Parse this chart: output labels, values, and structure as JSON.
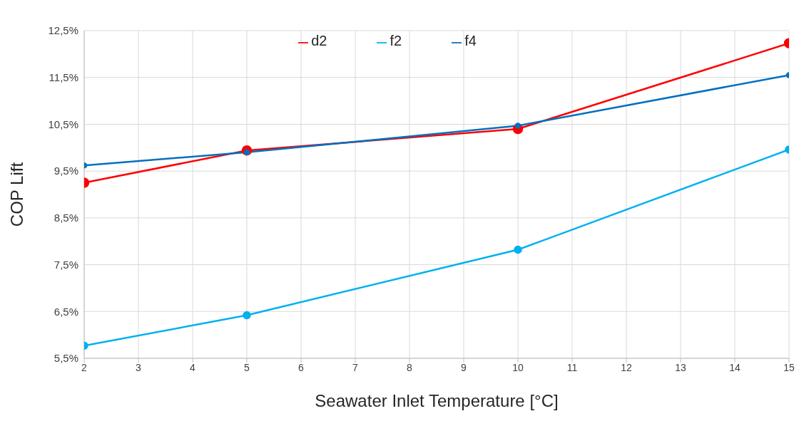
{
  "chart_data": {
    "type": "line",
    "xlabel": "Seawater Inlet Temperature [°C]",
    "ylabel": "COP Lift",
    "x": [
      2,
      5,
      10,
      15
    ],
    "series": [
      {
        "name": "d2",
        "color": "#ff0000",
        "values": [
          9.25,
          9.94,
          10.4,
          12.23
        ]
      },
      {
        "name": "f2",
        "color": "#00b0f0",
        "values": [
          5.77,
          6.42,
          7.82,
          9.96
        ]
      },
      {
        "name": "f4",
        "color": "#0070c0",
        "values": [
          9.62,
          9.9,
          10.47,
          11.55
        ]
      }
    ],
    "xlim": [
      2,
      15
    ],
    "xticks": [
      2,
      3,
      4,
      5,
      6,
      7,
      8,
      9,
      10,
      11,
      12,
      13,
      14,
      15
    ],
    "ylim": [
      5.5,
      12.5
    ],
    "yticks": [
      {
        "value": 5.5,
        "label": "5,5%"
      },
      {
        "value": 6.5,
        "label": "6,5%"
      },
      {
        "value": 7.5,
        "label": "7,5%"
      },
      {
        "value": 8.5,
        "label": "8,5%"
      },
      {
        "value": 9.5,
        "label": "9,5%"
      },
      {
        "value": 10.5,
        "label": "10,5%"
      },
      {
        "value": 11.5,
        "label": "11,5%"
      },
      {
        "value": 12.5,
        "label": "12,5%"
      }
    ],
    "grid": true,
    "legend": "top",
    "marker": "circle",
    "line_style": "solid"
  }
}
